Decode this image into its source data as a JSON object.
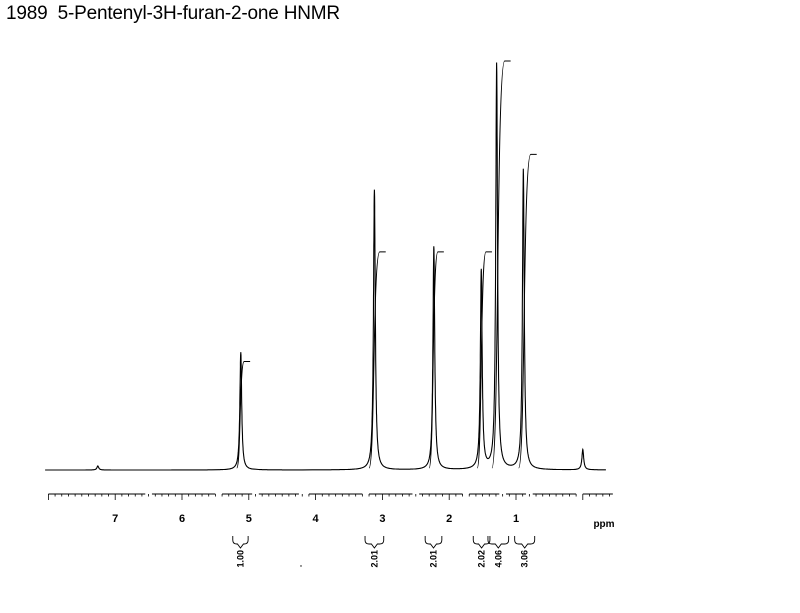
{
  "title": "1989  5-Pentenyl-3H-furan-2-one HNMR",
  "chart_data": {
    "type": "line",
    "title": "1989  5-Pentenyl-3H-furan-2-one HNMR",
    "xlabel": "ppm",
    "ylabel": "",
    "x_reversed": true,
    "xlim": [
      8.0,
      -0.3
    ],
    "grid": false,
    "x_ticks": [
      7,
      6,
      5,
      4,
      3,
      2,
      1
    ],
    "tick_labels": [
      "7",
      "6",
      "5",
      "4",
      "3",
      "2",
      "1"
    ],
    "unit_label": "ppm",
    "peaks": [
      {
        "shift": 7.26,
        "relative_height": 0.01
      },
      {
        "shift": 5.12,
        "relative_height": 0.29
      },
      {
        "shift": 3.12,
        "relative_height": 0.69
      },
      {
        "shift": 2.23,
        "relative_height": 0.55
      },
      {
        "shift": 1.52,
        "relative_height": 0.49
      },
      {
        "shift": 1.29,
        "relative_height": 1.0
      },
      {
        "shift": 0.89,
        "relative_height": 0.74
      },
      {
        "shift": 0.0,
        "relative_height": 0.05
      }
    ],
    "integrals": [
      {
        "from": 5.18,
        "to": 5.07,
        "value": "1.00",
        "rise": 0.26
      },
      {
        "from": 3.2,
        "to": 3.04,
        "value": "2.01",
        "rise": 0.53
      },
      {
        "from": 2.3,
        "to": 2.17,
        "value": "2.01",
        "rise": 0.53
      },
      {
        "from": 1.58,
        "to": 1.45,
        "value": "2.02",
        "rise": 0.53
      },
      {
        "from": 1.36,
        "to": 1.17,
        "value": "4.06",
        "rise": 1.0
      },
      {
        "from": 0.96,
        "to": 0.78,
        "value": "3.06",
        "rise": 0.77
      }
    ]
  }
}
